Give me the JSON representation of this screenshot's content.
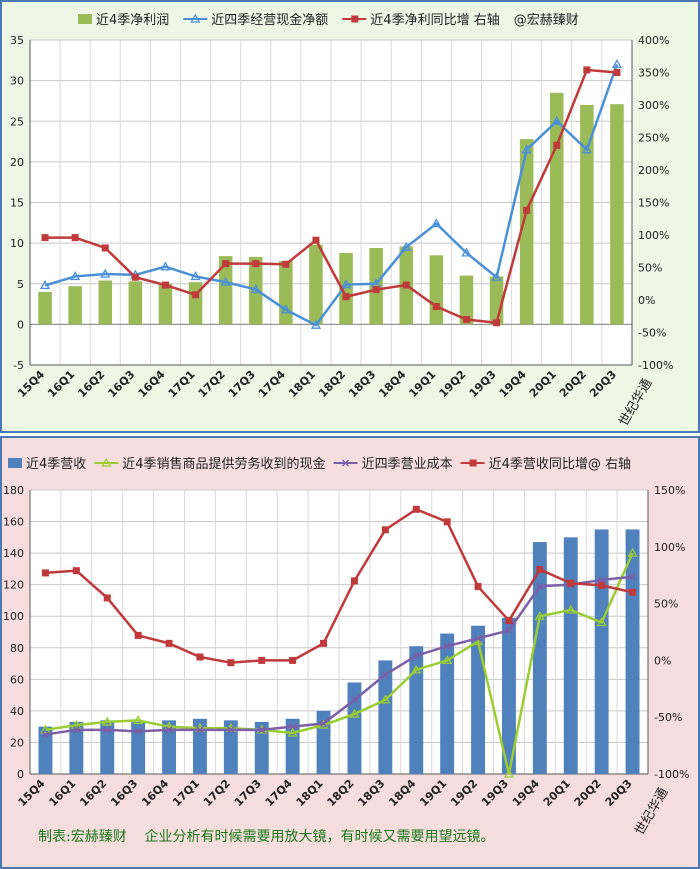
{
  "watermark": "世纪华通",
  "footer": "制表:宏赫臻财    企业分析有时候需要用放大镜，有时候又需要用望远镜。",
  "chart_data": [
    {
      "type": "bar+line",
      "categories": [
        "15Q4",
        "16Q1",
        "16Q2",
        "16Q3",
        "16Q4",
        "17Q1",
        "17Q2",
        "17Q3",
        "17Q4",
        "18Q1",
        "18Q2",
        "18Q3",
        "18Q4",
        "19Q1",
        "19Q2",
        "19Q3",
        "19Q4",
        "20Q1",
        "20Q2",
        "20Q3"
      ],
      "ylim": [
        -5,
        35
      ],
      "yticks": [
        "-5",
        "0",
        "5",
        "10",
        "15",
        "20",
        "25",
        "30",
        "35"
      ],
      "y2lim": [
        -100,
        400
      ],
      "y2ticks": [
        "-100%",
        "-50%",
        "0%",
        "50%",
        "100%",
        "150%",
        "200%",
        "250%",
        "300%",
        "350%",
        "400%"
      ],
      "legend": [
        "近4季净利润",
        "近四季经营现金净额",
        "近4季净利同比增 右轴",
        "@宏赫臻财"
      ],
      "colors": {
        "bar": "#9bbb59",
        "line1": "#4a90d9",
        "line2": "#c0393b"
      },
      "series": [
        {
          "name": "近4季净利润",
          "kind": "bar",
          "axis": "left",
          "values": [
            4.0,
            4.7,
            5.4,
            5.3,
            5.0,
            5.2,
            8.4,
            8.3,
            7.8,
            9.8,
            8.8,
            9.4,
            9.6,
            8.5,
            6.0,
            5.9,
            22.8,
            28.5,
            27.0,
            27.1
          ]
        },
        {
          "name": "近四季经营现金净额",
          "kind": "line",
          "axis": "left",
          "values": [
            4.8,
            5.9,
            6.2,
            6.1,
            7.1,
            5.9,
            5.2,
            4.3,
            1.8,
            -0.1,
            4.9,
            5.0,
            9.5,
            12.4,
            8.8,
            5.8,
            21.5,
            25.0,
            21.5,
            32.0
          ]
        },
        {
          "name": "近4季净利同比增 右轴",
          "kind": "line",
          "axis": "right",
          "values": [
            96,
            96,
            80,
            35,
            23,
            8,
            56,
            56,
            55,
            92,
            5,
            16,
            23,
            -10,
            -30,
            -35,
            138,
            238,
            354,
            350
          ]
        }
      ]
    },
    {
      "type": "bar+line",
      "categories": [
        "15Q4",
        "16Q1",
        "16Q2",
        "16Q3",
        "16Q4",
        "17Q1",
        "17Q2",
        "17Q3",
        "17Q4",
        "18Q1",
        "18Q2",
        "18Q3",
        "18Q4",
        "19Q1",
        "19Q2",
        "19Q3",
        "19Q4",
        "20Q1",
        "20Q2",
        "20Q3"
      ],
      "ylim": [
        0,
        180
      ],
      "yticks": [
        "0",
        "20",
        "40",
        "60",
        "80",
        "100",
        "120",
        "140",
        "160",
        "180"
      ],
      "y2lim": [
        -100,
        150
      ],
      "y2ticks": [
        "-100%",
        "-50%",
        "0%",
        "50%",
        "100%",
        "150%"
      ],
      "legend": [
        "近4季营收",
        "近4季销售商品提供劳务收到的现金",
        "近四季营业成本",
        "近4季营收同比增@ 右轴"
      ],
      "colors": {
        "bar": "#4f81bd",
        "line1": "#9acd32",
        "line2": "#7b5fa8",
        "line3": "#c0393b"
      },
      "series": [
        {
          "name": "近4季营收",
          "kind": "bar",
          "axis": "left",
          "values": [
            30,
            33,
            34,
            33,
            34,
            35,
            34,
            33,
            35,
            40,
            58,
            72,
            81,
            89,
            94,
            99,
            147,
            150,
            155,
            155
          ]
        },
        {
          "name": "近4季销售商品提供劳务收到的现金",
          "kind": "line",
          "axis": "left",
          "values": [
            28,
            31,
            33,
            34,
            30,
            29,
            29,
            28,
            26,
            31,
            38,
            47,
            66,
            72,
            84,
            0,
            100,
            104,
            96,
            140
          ]
        },
        {
          "name": "近四季营业成本",
          "kind": "line",
          "axis": "left",
          "values": [
            25,
            28,
            28,
            27,
            28,
            28,
            28,
            28,
            30,
            32,
            47,
            63,
            75,
            81,
            86,
            91,
            119,
            120,
            123,
            125
          ]
        },
        {
          "name": "近4季营收同比增@ 右轴",
          "kind": "line",
          "axis": "right",
          "values": [
            77,
            79,
            55,
            22,
            15,
            3,
            -2,
            0,
            0,
            15,
            70,
            115,
            133,
            122,
            65,
            35,
            80,
            68,
            66,
            60
          ]
        }
      ]
    }
  ]
}
